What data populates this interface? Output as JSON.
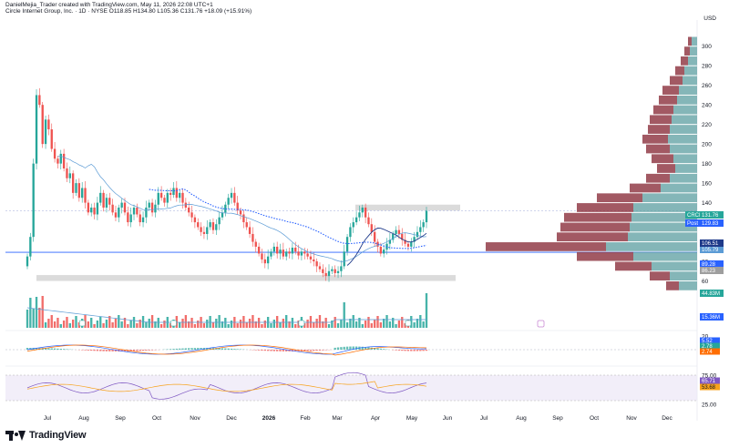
{
  "header": {
    "text": "DanielMejia_Trader created with TradingView.com, May 11, 2026 22:08 UTC+1",
    "symbol_line": "Circle Internet Group, Inc. · 1D · NYSE  O118.85  H134.80  L105.36  C131.76  +18.09 (+15.91%)"
  },
  "currency": "USD",
  "logo_text": "TradingView",
  "colors": {
    "up": "#26a69a",
    "down": "#ef5350",
    "ma_dark": "#1e3a8a",
    "ma_light": "#5b9bd5",
    "ma_dotted": "#2962ff",
    "vp_up": "#5b9ea0",
    "vp_down": "#8b2f3c",
    "zone": "#cfcfcf",
    "rsi_band": "#ede7f6",
    "rsi_line": "#7e57c2",
    "rsi_ma": "#f7a21b"
  },
  "chart_data": {
    "type": "candlestick",
    "symbol": "CRCL",
    "timeframe": "1D",
    "exchange": "NYSE",
    "ohlc_last": {
      "open": 118.85,
      "high": 134.8,
      "low": 105.36,
      "close": 131.76,
      "change": 18.09,
      "change_pct": 15.91
    },
    "price_axis": {
      "ticks": [
        300,
        280,
        260,
        240,
        220,
        200,
        180,
        160,
        140,
        120,
        100,
        80,
        60
      ],
      "ylim": [
        40,
        310
      ]
    },
    "months": [
      "Jul",
      "Aug",
      "Sep",
      "Oct",
      "Nov",
      "Dec",
      "2026",
      "Feb",
      "Mar",
      "Apr",
      "May",
      "Jun",
      "Jul",
      "Aug",
      "Sep",
      "Oct",
      "Nov",
      "Dec"
    ],
    "closes": [
      85,
      105,
      180,
      250,
      240,
      200,
      225,
      215,
      195,
      185,
      180,
      190,
      175,
      165,
      170,
      150,
      160,
      145,
      155,
      140,
      130,
      135,
      128,
      140,
      150,
      135,
      145,
      138,
      130,
      125,
      135,
      140,
      130,
      120,
      128,
      135,
      128,
      120,
      125,
      135,
      140,
      130,
      138,
      150,
      145,
      140,
      150,
      148,
      155,
      145,
      150,
      140,
      135,
      130,
      125,
      120,
      115,
      110,
      108,
      115,
      120,
      112,
      118,
      125,
      130,
      138,
      145,
      150,
      140,
      132,
      128,
      120,
      115,
      108,
      100,
      95,
      88,
      82,
      78,
      85,
      90,
      95,
      88,
      92,
      85,
      90,
      88,
      94,
      90,
      86,
      90,
      88,
      85,
      82,
      80,
      75,
      72,
      68,
      65,
      70,
      72,
      68,
      70,
      75,
      90,
      105,
      115,
      120,
      125,
      130,
      135,
      125,
      118,
      110,
      100,
      95,
      88,
      92,
      98,
      102,
      108,
      112,
      108,
      102,
      98,
      95,
      100,
      105,
      110,
      115,
      120,
      131.76
    ],
    "price_tags": [
      {
        "label": "CRCL",
        "value": "131.76",
        "bg": "#26a69a",
        "y": 131.76
      },
      {
        "label": "Post",
        "value": "129.83",
        "bg": "#2962ff",
        "y": 129.83
      },
      {
        "label": "",
        "value": "105.79",
        "bg": "#5b9bd5",
        "y": 105.79
      },
      {
        "label": "",
        "value": "106.51",
        "bg": "#1e3a8a",
        "y": 106.51
      },
      {
        "label": "",
        "value": "89.28",
        "bg": "#2962ff",
        "y": 89.28
      },
      {
        "label": "",
        "value": "86.23",
        "bg": "#9e9e9e",
        "y": 86.23
      }
    ],
    "volume_tag": "44.83M",
    "volume_ma_tag": "15.36M",
    "macd": {
      "ticks": [
        20,
        0
      ],
      "tags": [
        "5.52",
        "2.78",
        "2.74"
      ]
    },
    "rsi": {
      "ticks": [
        75,
        25
      ],
      "tags": [
        "65.71",
        "53.68"
      ]
    },
    "zones": [
      {
        "from": 132,
        "to": 138
      },
      {
        "from": 60,
        "to": 66
      }
    ],
    "volume_profile_note": "Volume profile histogram on the right side"
  }
}
